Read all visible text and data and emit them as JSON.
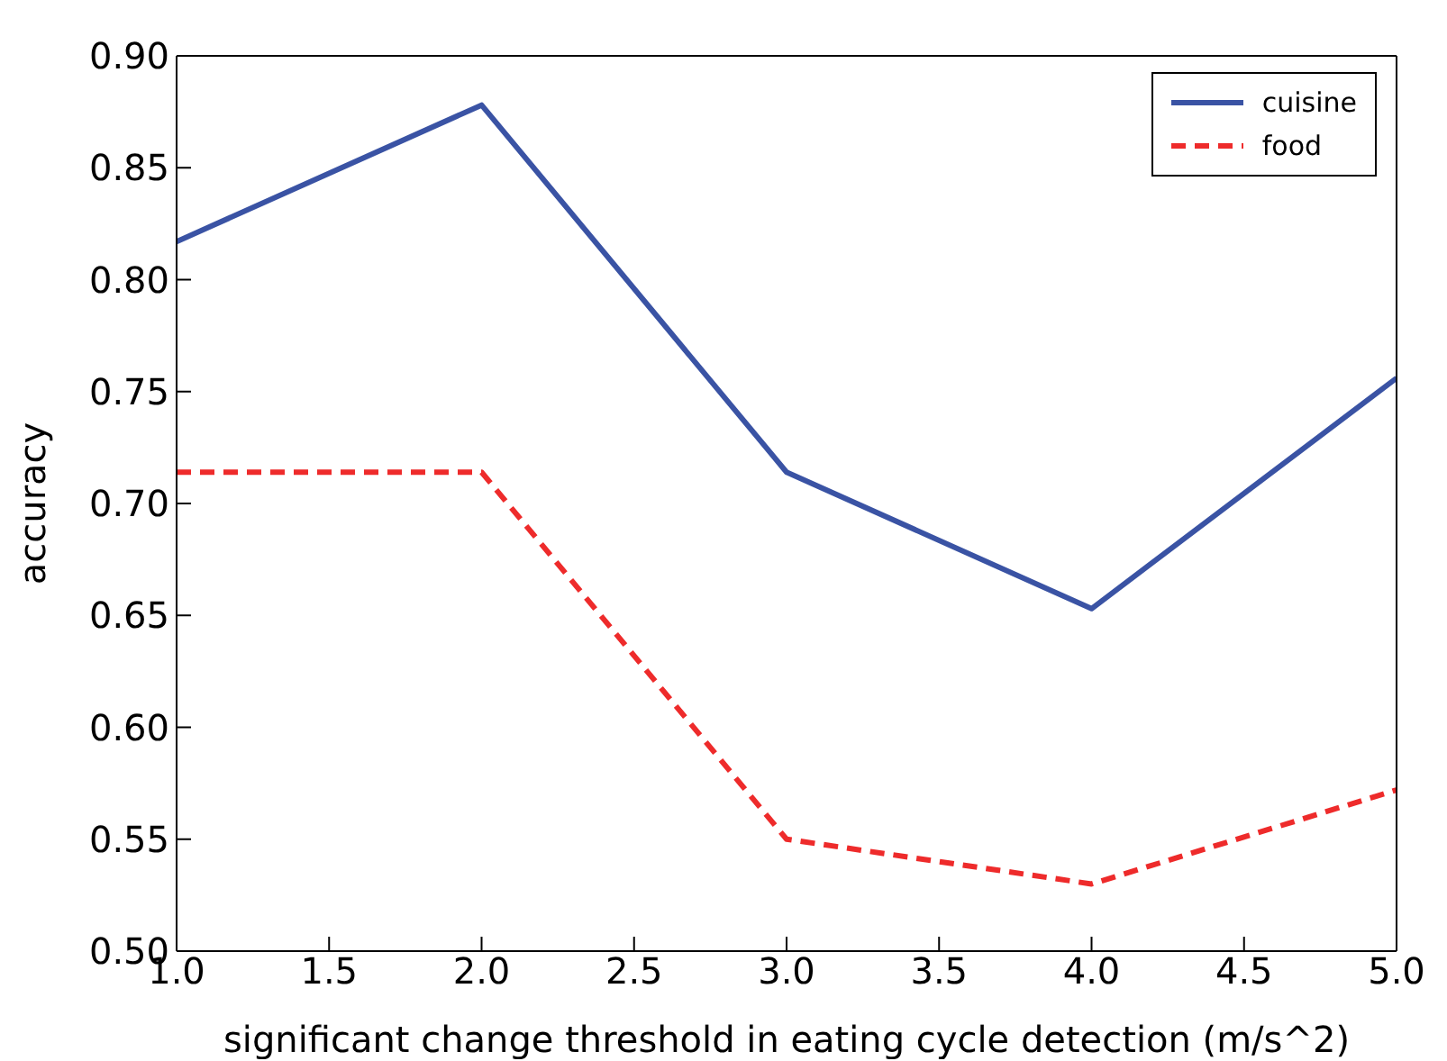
{
  "chart_data": {
    "type": "line",
    "xlabel": "significant change threshold in eating cycle detection (m/s^2)",
    "ylabel": "accuracy",
    "x": [
      1.0,
      2.0,
      3.0,
      4.0,
      5.0
    ],
    "series": [
      {
        "name": "cuisine",
        "color": "#3a53a4",
        "values": [
          0.817,
          0.878,
          0.714,
          0.653,
          0.756
        ],
        "line_style": "solid"
      },
      {
        "name": "food",
        "color": "#ee2b2b",
        "values": [
          0.714,
          0.714,
          0.55,
          0.53,
          0.572
        ],
        "line_style": "dashed"
      }
    ],
    "xlim": [
      1.0,
      5.0
    ],
    "xticks": [
      {
        "value": 1.0,
        "label": "1.0"
      },
      {
        "value": 1.5,
        "label": "1.5"
      },
      {
        "value": 2.0,
        "label": "2.0"
      },
      {
        "value": 2.5,
        "label": "2.5"
      },
      {
        "value": 3.0,
        "label": "3.0"
      },
      {
        "value": 3.5,
        "label": "3.5"
      },
      {
        "value": 4.0,
        "label": "4.0"
      },
      {
        "value": 4.5,
        "label": "4.5"
      },
      {
        "value": 5.0,
        "label": "5.0"
      }
    ],
    "ylim": [
      0.5,
      0.9
    ],
    "yticks": [
      {
        "value": 0.5,
        "label": "0.50"
      },
      {
        "value": 0.55,
        "label": "0.55"
      },
      {
        "value": 0.6,
        "label": "0.60"
      },
      {
        "value": 0.65,
        "label": "0.65"
      },
      {
        "value": 0.7,
        "label": "0.70"
      },
      {
        "value": 0.75,
        "label": "0.75"
      },
      {
        "value": 0.8,
        "label": "0.80"
      },
      {
        "value": 0.85,
        "label": "0.85"
      },
      {
        "value": 0.9,
        "label": "0.90"
      }
    ],
    "grid": false,
    "legend": "top right",
    "marker": "none"
  }
}
